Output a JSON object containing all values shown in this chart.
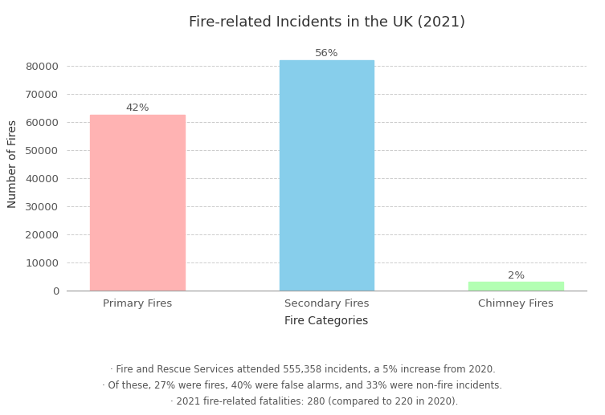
{
  "title": "Fire-related Incidents in the UK (2021)",
  "categories": [
    "Primary Fires",
    "Secondary Fires",
    "Chimney Fires"
  ],
  "values": [
    62500,
    82000,
    3000
  ],
  "percentages": [
    "42%",
    "56%",
    "2%"
  ],
  "bar_colors": [
    "#FFB3B3",
    "#87CEEB",
    "#B3FFB3"
  ],
  "xlabel": "Fire Categories",
  "ylabel": "Number of Fires",
  "ylim": [
    0,
    90000
  ],
  "yticks": [
    0,
    10000,
    20000,
    30000,
    40000,
    50000,
    60000,
    70000,
    80000
  ],
  "background_color": "#ffffff",
  "grid_color": "#cccccc",
  "annotation_lines": [
    "· Fire and Rescue Services attended 555,358 incidents, a 5% increase from 2020.",
    "· Of these, 27% were fires, 40% were false alarms, and 33% were non-fire incidents.",
    "        · 2021 fire-related fatalities: 280 (compared to 220 in 2020)."
  ],
  "title_fontsize": 13,
  "label_fontsize": 10,
  "tick_fontsize": 9.5,
  "annotation_fontsize": 8.5,
  "pct_fontsize": 9.5
}
